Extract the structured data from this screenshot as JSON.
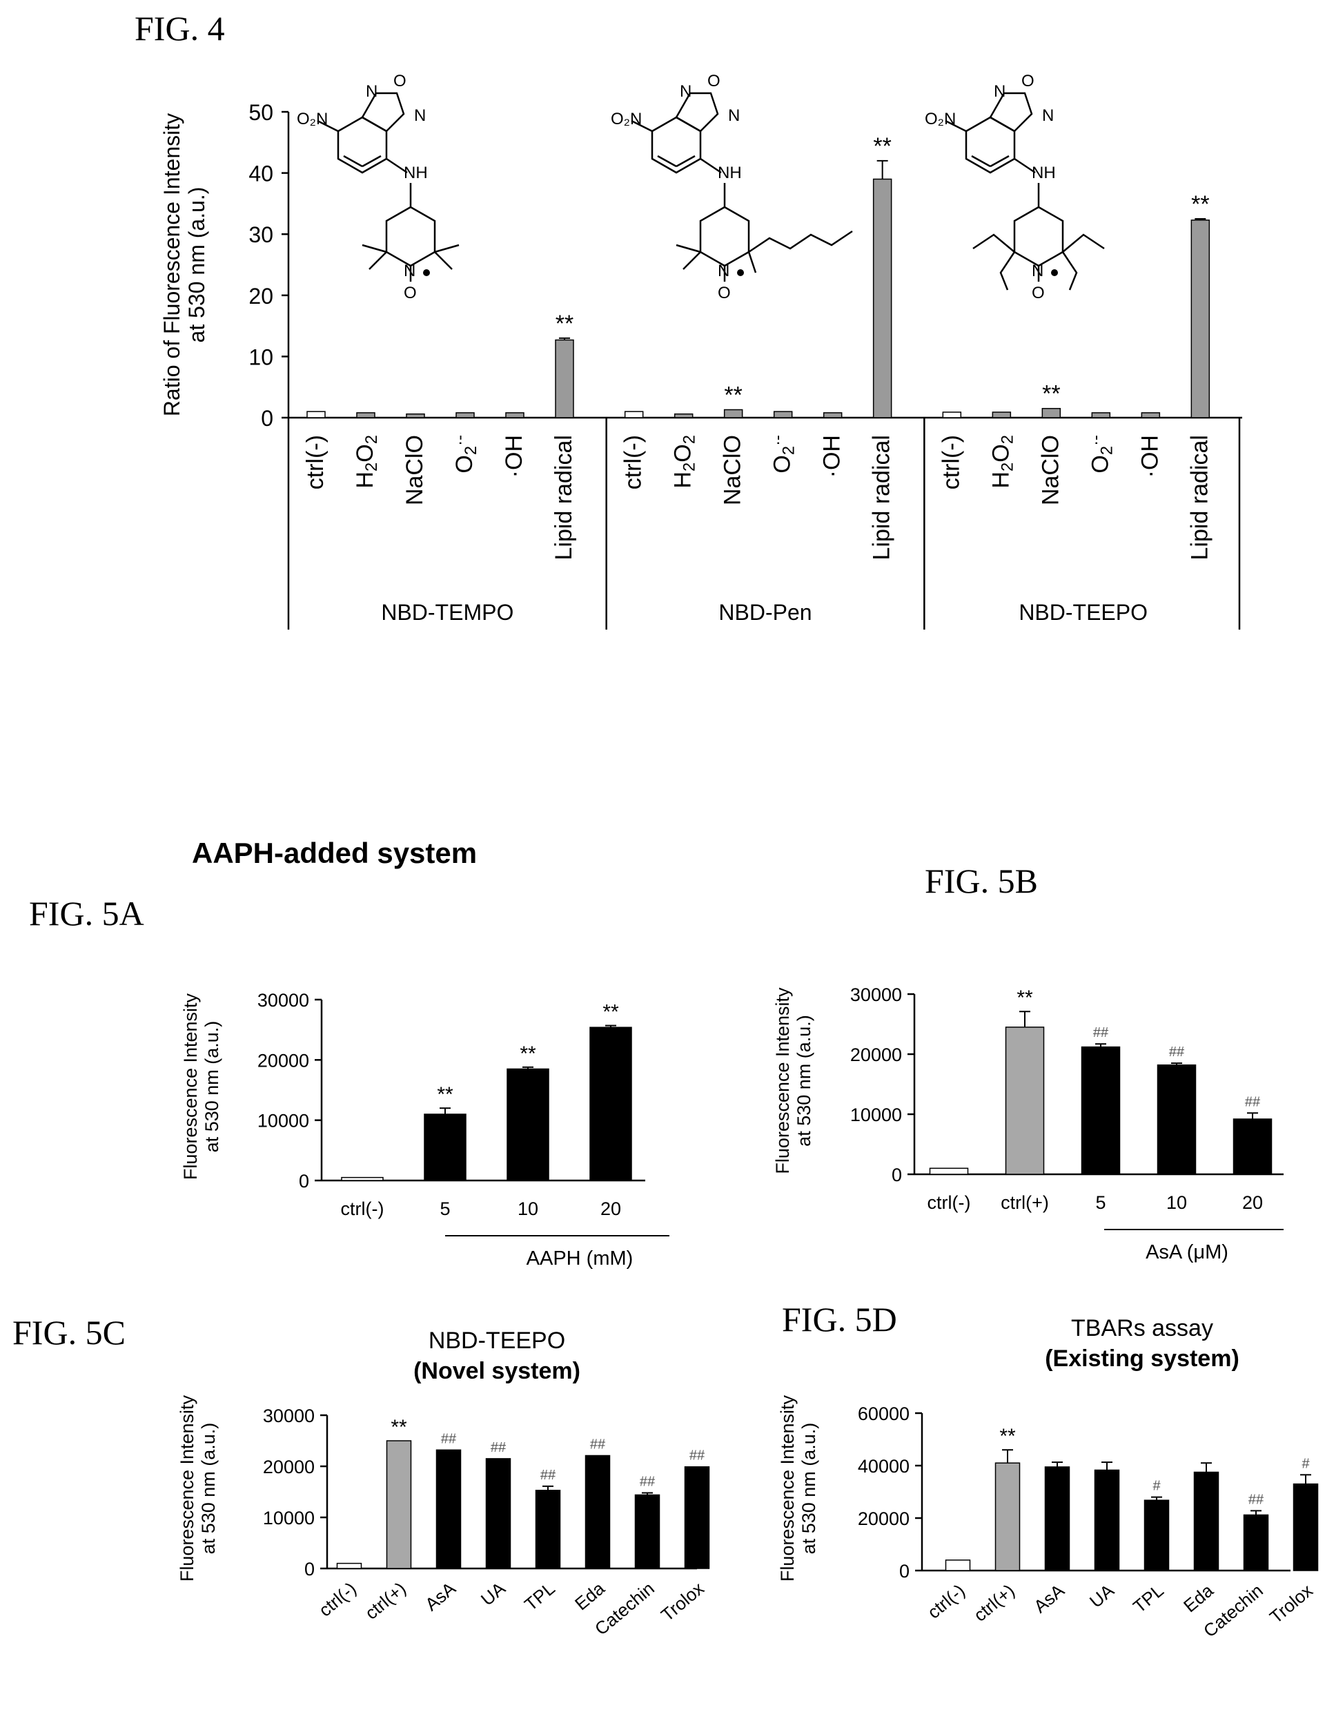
{
  "labels": {
    "fig4": "FIG. 4",
    "fig5a": "FIG. 5A",
    "fig5b": "FIG. 5B",
    "fig5c": "FIG. 5C",
    "fig5d": "FIG. 5D",
    "aaph_system": "AAPH-added system"
  },
  "chart_data": [
    {
      "id": "fig4",
      "type": "bar",
      "ylabel": "Ratio of Fluorescence Intensity at 530 nm (a.u.)",
      "ylabel_lines": [
        "Ratio of Fluorescence Intensity",
        "at 530 nm (a.u.)"
      ],
      "ylim": [
        0,
        50
      ],
      "yticks": [
        0,
        10,
        20,
        30,
        40,
        50
      ],
      "categories": [
        "ctrl(-)",
        "H2O2",
        "NaClO",
        "O2·-",
        "·OH",
        "Lipid radical"
      ],
      "groups": [
        {
          "name": "NBD-TEMPO",
          "values": [
            1.0,
            0.8,
            0.6,
            0.8,
            0.8,
            12.7
          ],
          "errors": [
            0,
            0,
            0,
            0,
            0,
            0.3
          ],
          "marks": [
            "",
            "",
            "",
            "",
            "",
            "**"
          ]
        },
        {
          "name": "NBD-Pen",
          "values": [
            1.0,
            0.6,
            1.3,
            1.0,
            0.8,
            39.0
          ],
          "errors": [
            0,
            0,
            0,
            0,
            0,
            3.0
          ],
          "marks": [
            "",
            "",
            "**",
            "",
            "",
            "**"
          ]
        },
        {
          "name": "NBD-TEEPO",
          "values": [
            0.9,
            0.9,
            1.5,
            0.8,
            0.8,
            32.3
          ],
          "errors": [
            0,
            0,
            0,
            0,
            0,
            0.2
          ],
          "marks": [
            "",
            "",
            "**",
            "",
            "",
            "**"
          ]
        }
      ]
    },
    {
      "id": "fig5a",
      "type": "bar",
      "ylabel_lines": [
        "Fluorescence Intensity",
        "at 530 nm (a.u.)"
      ],
      "ylim": [
        0,
        30000
      ],
      "yticks": [
        0,
        10000,
        20000,
        30000
      ],
      "categories": [
        "ctrl(-)",
        "5",
        "10",
        "20"
      ],
      "values": [
        500,
        11000,
        18500,
        25400
      ],
      "errors": [
        0,
        1000,
        300,
        300
      ],
      "marks": [
        "",
        "**",
        "**",
        "**"
      ],
      "xlabel": "AAPH (mM)"
    },
    {
      "id": "fig5b",
      "type": "bar",
      "ylabel_lines": [
        "Fluorescence Intensity",
        "at 530 nm (a.u.)"
      ],
      "ylim": [
        0,
        30000
      ],
      "yticks": [
        0,
        10000,
        20000,
        30000
      ],
      "categories": [
        "ctrl(-)",
        "ctrl(+)",
        "5",
        "10",
        "20"
      ],
      "values": [
        1000,
        24500,
        21200,
        18200,
        9200
      ],
      "errors": [
        0,
        2600,
        500,
        300,
        1000
      ],
      "marks": [
        "",
        "**",
        "##",
        "##",
        "##"
      ],
      "xlabel": "AsA (μM)"
    },
    {
      "id": "fig5c",
      "type": "bar",
      "title": "NBD-TEEPO",
      "subtitle": "(Novel system)",
      "ylabel_lines": [
        "Fluorescence Intensity",
        "at 530 nm (a.u.)"
      ],
      "ylim": [
        0,
        30000
      ],
      "yticks": [
        0,
        10000,
        20000,
        30000
      ],
      "categories": [
        "ctrl(-)",
        "ctrl(+)",
        "AsA",
        "UA",
        "TPL",
        "Eda",
        "Catechin",
        "Trolox"
      ],
      "values": [
        1000,
        25000,
        23200,
        21500,
        15300,
        22100,
        14400,
        19900
      ],
      "errors": [
        0,
        0,
        0,
        0,
        800,
        0,
        400,
        0
      ],
      "marks": [
        "",
        "**",
        "##",
        "##",
        "##",
        "##",
        "##",
        "##"
      ]
    },
    {
      "id": "fig5d",
      "type": "bar",
      "title": "TBARs assay",
      "subtitle": "(Existing system)",
      "ylabel_lines": [
        "Fluorescence Intensity",
        "at 530 nm (a.u.)"
      ],
      "ylim": [
        0,
        60000
      ],
      "yticks": [
        0,
        20000,
        40000,
        60000
      ],
      "categories": [
        "ctrl(-)",
        "ctrl(+)",
        "AsA",
        "UA",
        "TPL",
        "Eda",
        "Catechin",
        "Trolox"
      ],
      "values": [
        4000,
        41000,
        39500,
        38300,
        26800,
        37500,
        21200,
        33000
      ],
      "errors": [
        0,
        5000,
        1800,
        3000,
        1200,
        3500,
        1600,
        3500
      ],
      "marks": [
        "",
        "**",
        "",
        "",
        "#",
        "",
        "##",
        "#"
      ]
    }
  ]
}
